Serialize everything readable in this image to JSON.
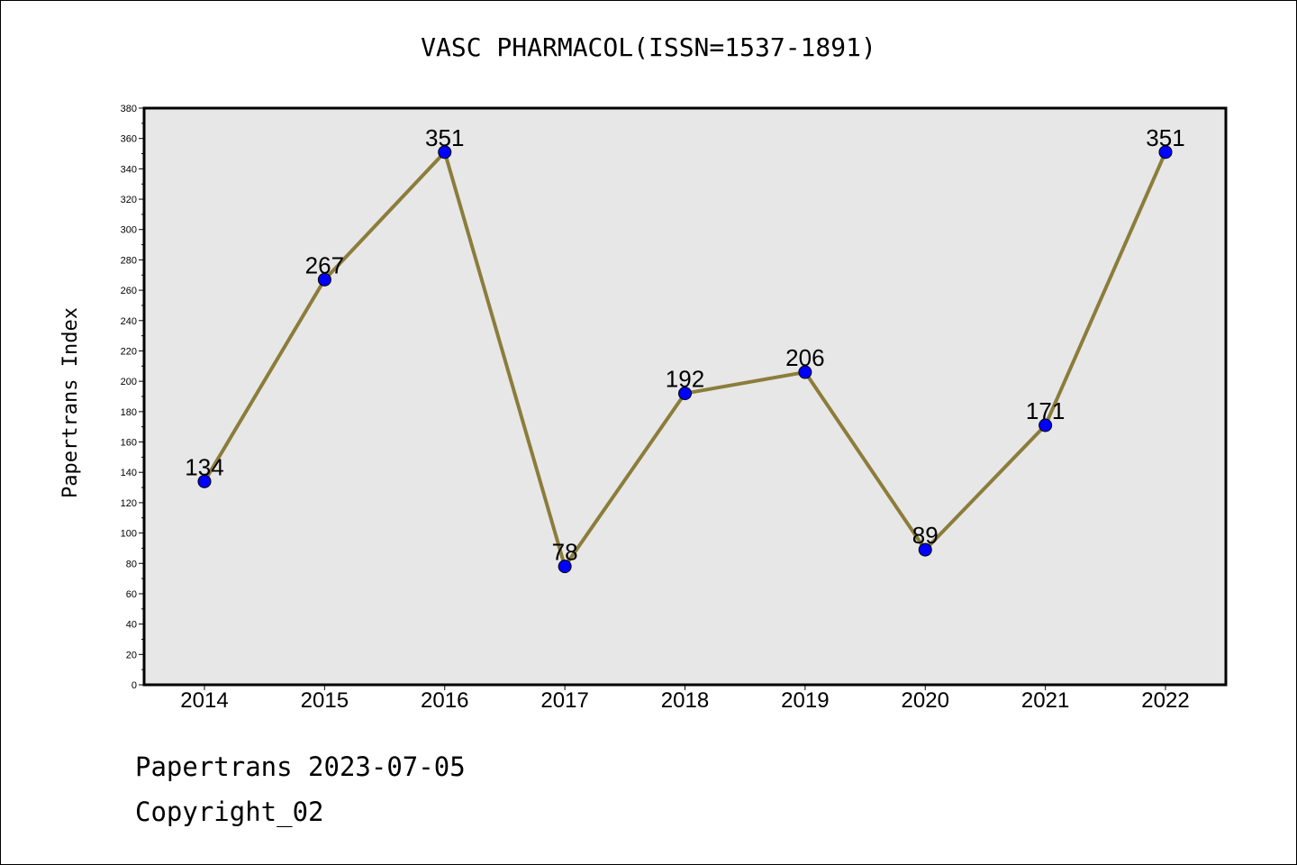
{
  "chart_data": {
    "type": "line",
    "title": "VASC PHARMACOL(ISSN=1537-1891)",
    "xlabel": "",
    "ylabel": "Papertrans Index",
    "categories": [
      "2014",
      "2015",
      "2016",
      "2017",
      "2018",
      "2019",
      "2020",
      "2021",
      "2022"
    ],
    "values": [
      134,
      267,
      351,
      78,
      192,
      206,
      89,
      171,
      351
    ],
    "ylim": [
      0,
      380
    ],
    "yticks": [
      0,
      20,
      40,
      60,
      80,
      100,
      120,
      140,
      160,
      180,
      200,
      220,
      240,
      260,
      280,
      300,
      320,
      340,
      360,
      380
    ],
    "grid": false,
    "data_labels": true,
    "colors": {
      "line": "#8B7D3A",
      "marker": "#0000FF",
      "plot_background": "#E7E7E7"
    }
  },
  "footer": {
    "line1": "Papertrans 2023-07-05",
    "line2": "Copyright_02"
  }
}
